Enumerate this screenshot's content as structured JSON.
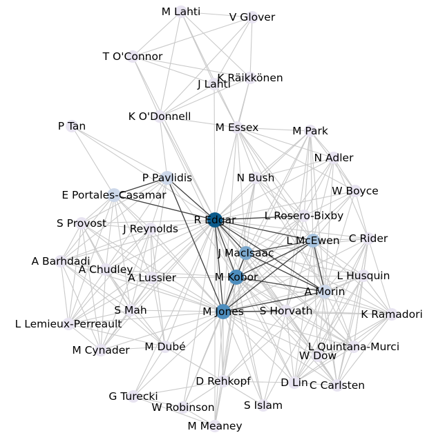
{
  "graph": {
    "colors": {
      "light_edge": "#c9c9c9",
      "dark_edge": "#3f3f3f",
      "node_default": "#e8e4f1",
      "node_pale_blue": "#cdd8ea",
      "node_light_blue": "#a8c4df",
      "node_mid_blue": "#7aa7cc",
      "node_blue": "#4d8dbd",
      "node_dark_blue": "#0b5a8a"
    },
    "nodes": [
      {
        "id": "m-lahti",
        "label": "M Lahti",
        "color": "node_default"
      },
      {
        "id": "v-glover",
        "label": "V Glover",
        "color": "node_default"
      },
      {
        "id": "t-oconnor",
        "label": "T O'Connor",
        "color": "node_default"
      },
      {
        "id": "k-raikkonen",
        "label": "K Räikkönen",
        "color": "node_default"
      },
      {
        "id": "j-lahti",
        "label": "J Lahti",
        "color": "node_default"
      },
      {
        "id": "k-odonnell",
        "label": "K O'Donnell",
        "color": "node_default"
      },
      {
        "id": "p-tan",
        "label": "P Tan",
        "color": "node_default"
      },
      {
        "id": "m-essex",
        "label": "M Essex",
        "color": "node_default"
      },
      {
        "id": "m-park",
        "label": "M Park",
        "color": "node_default"
      },
      {
        "id": "n-adler",
        "label": "N Adler",
        "color": "node_default"
      },
      {
        "id": "p-pavlidis",
        "label": "P Pavlidis",
        "color": "node_pale_blue"
      },
      {
        "id": "n-bush",
        "label": "N Bush",
        "color": "node_default"
      },
      {
        "id": "w-boyce",
        "label": "W Boyce",
        "color": "node_default"
      },
      {
        "id": "e-portales",
        "label": "E Portales-Casamar",
        "color": "node_pale_blue"
      },
      {
        "id": "l-rosero",
        "label": "L Rosero-Bixby",
        "color": "node_default"
      },
      {
        "id": "r-edgar",
        "label": "R Edgar",
        "color": "node_dark_blue"
      },
      {
        "id": "s-provost",
        "label": "S Provost",
        "color": "node_default"
      },
      {
        "id": "j-reynolds",
        "label": "J Reynolds",
        "color": "node_default"
      },
      {
        "id": "c-rider",
        "label": "C Rider",
        "color": "node_default"
      },
      {
        "id": "l-mcewen",
        "label": "L McEwen",
        "color": "node_light_blue"
      },
      {
        "id": "j-macisaac",
        "label": "J MacIsaac",
        "color": "node_mid_blue"
      },
      {
        "id": "a-barhdadi",
        "label": "A Barhdadi",
        "color": "node_default"
      },
      {
        "id": "a-chudley",
        "label": "A Chudley",
        "color": "node_default"
      },
      {
        "id": "l-husquin",
        "label": "L Husquin",
        "color": "node_default"
      },
      {
        "id": "a-lussier",
        "label": "A Lussier",
        "color": "node_default"
      },
      {
        "id": "m-kobor",
        "label": "M Kobor",
        "color": "node_blue"
      },
      {
        "id": "a-morin",
        "label": "A Morin",
        "color": "node_pale_blue"
      },
      {
        "id": "s-mah",
        "label": "S Mah",
        "color": "node_default"
      },
      {
        "id": "m-jones",
        "label": "M Jones",
        "color": "node_blue"
      },
      {
        "id": "s-horvath",
        "label": "S Horvath",
        "color": "node_default"
      },
      {
        "id": "k-ramadori",
        "label": "K Ramadori",
        "color": "node_default"
      },
      {
        "id": "l-lemieux",
        "label": "L Lemieux-Perreault",
        "color": "node_default"
      },
      {
        "id": "m-cynader",
        "label": "M Cynader",
        "color": "node_default"
      },
      {
        "id": "m-dube",
        "label": "M Dubé",
        "color": "node_default"
      },
      {
        "id": "l-quintana",
        "label": "L Quintana-Murci",
        "color": "node_default"
      },
      {
        "id": "w-dow",
        "label": "W Dow",
        "color": "node_default"
      },
      {
        "id": "d-rehkopf",
        "label": "D Rehkopf",
        "color": "node_default"
      },
      {
        "id": "d-lin",
        "label": "D Lin",
        "color": "node_default"
      },
      {
        "id": "c-carlsten",
        "label": "C Carlsten",
        "color": "node_default"
      },
      {
        "id": "g-turecki",
        "label": "G Turecki",
        "color": "node_default"
      },
      {
        "id": "s-islam",
        "label": "S Islam",
        "color": "node_default"
      },
      {
        "id": "w-robinson",
        "label": "W Robinson",
        "color": "node_default"
      },
      {
        "id": "m-meaney",
        "label": "M Meaney",
        "color": "node_default"
      }
    ]
  }
}
